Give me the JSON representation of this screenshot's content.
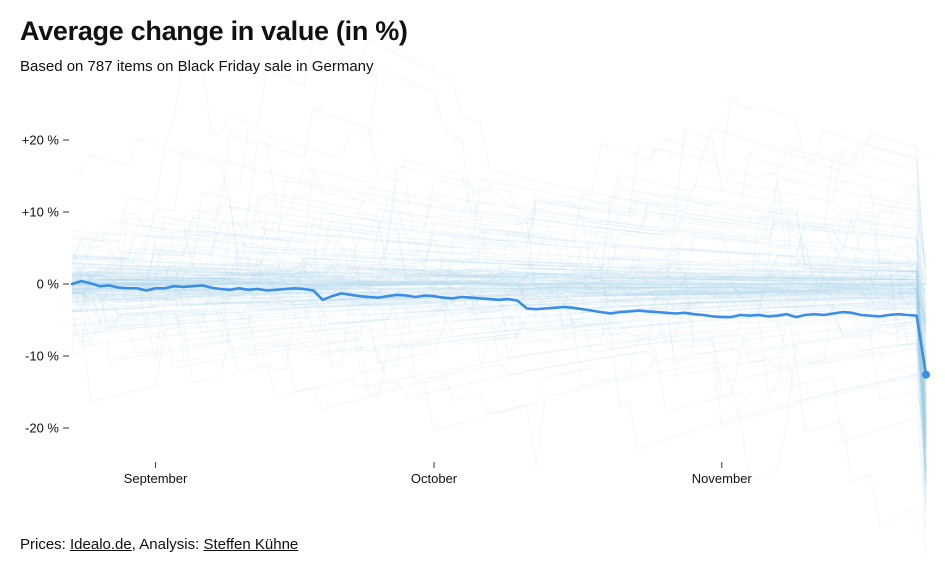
{
  "chart_data": {
    "type": "line",
    "title": "Average change in value (in %)",
    "subtitle": "Based on 787 items on Black Friday sale in Germany",
    "xlabel": "",
    "ylabel": "",
    "ylim": [
      -25,
      25
    ],
    "y_ticks": [
      {
        "value": 20,
        "label": "+20 %"
      },
      {
        "value": 10,
        "label": "+10 %"
      },
      {
        "value": 0,
        "label": "0 %"
      },
      {
        "value": -10,
        "label": "-10 %"
      },
      {
        "value": -20,
        "label": "-20 %"
      }
    ],
    "x_ticks": [
      {
        "day": 9,
        "label": "September"
      },
      {
        "day": 39,
        "label": "October"
      },
      {
        "day": 70,
        "label": "November"
      }
    ],
    "x_range_days": [
      0,
      92
    ],
    "grid": false,
    "background_series": "787 individual item price series (light blue, semi-transparent)",
    "series": [
      {
        "name": "",
        "color": "#3a8ee6",
        "x": [
          0,
          1,
          2,
          3,
          4,
          5,
          6,
          7,
          8,
          9,
          10,
          11,
          12,
          13,
          14,
          15,
          16,
          17,
          18,
          19,
          20,
          21,
          22,
          23,
          24,
          25,
          26,
          27,
          28,
          29,
          30,
          31,
          32,
          33,
          34,
          35,
          36,
          37,
          38,
          39,
          40,
          41,
          42,
          43,
          44,
          45,
          46,
          47,
          48,
          49,
          50,
          51,
          52,
          53,
          54,
          55,
          56,
          57,
          58,
          59,
          60,
          61,
          62,
          63,
          64,
          65,
          66,
          67,
          68,
          69,
          70,
          71,
          72,
          73,
          74,
          75,
          76,
          77,
          78,
          79,
          80,
          81,
          82,
          83,
          84,
          85,
          86,
          87,
          88,
          89,
          90,
          91,
          92
        ],
        "values": [
          0.0,
          0.4,
          0.1,
          -0.3,
          -0.2,
          -0.5,
          -0.6,
          -0.6,
          -0.9,
          -0.6,
          -0.6,
          -0.3,
          -0.4,
          -0.3,
          -0.2,
          -0.5,
          -0.7,
          -0.8,
          -0.6,
          -0.8,
          -0.7,
          -0.9,
          -0.8,
          -0.7,
          -0.6,
          -0.7,
          -0.9,
          -2.2,
          -1.7,
          -1.3,
          -1.5,
          -1.7,
          -1.8,
          -1.9,
          -1.7,
          -1.5,
          -1.6,
          -1.8,
          -1.6,
          -1.7,
          -1.9,
          -2.0,
          -1.8,
          -1.9,
          -2.0,
          -2.1,
          -2.2,
          -2.1,
          -2.3,
          -3.4,
          -3.5,
          -3.4,
          -3.3,
          -3.2,
          -3.3,
          -3.5,
          -3.7,
          -3.9,
          -4.1,
          -3.9,
          -3.8,
          -3.7,
          -3.8,
          -3.9,
          -4.0,
          -4.1,
          -4.0,
          -4.2,
          -4.3,
          -4.5,
          -4.6,
          -4.6,
          -4.3,
          -4.4,
          -4.3,
          -4.5,
          -4.4,
          -4.2,
          -4.6,
          -4.3,
          -4.2,
          -4.3,
          -4.1,
          -3.9,
          -4.0,
          -4.3,
          -4.4,
          -4.5,
          -4.3,
          -4.2,
          -4.3,
          -4.4,
          -12.6
        ]
      }
    ]
  },
  "source": {
    "prefix": "Prices: ",
    "link1": "Idealo.de",
    "middle": ", Analysis: ",
    "link2": "Steffen Kühne"
  }
}
